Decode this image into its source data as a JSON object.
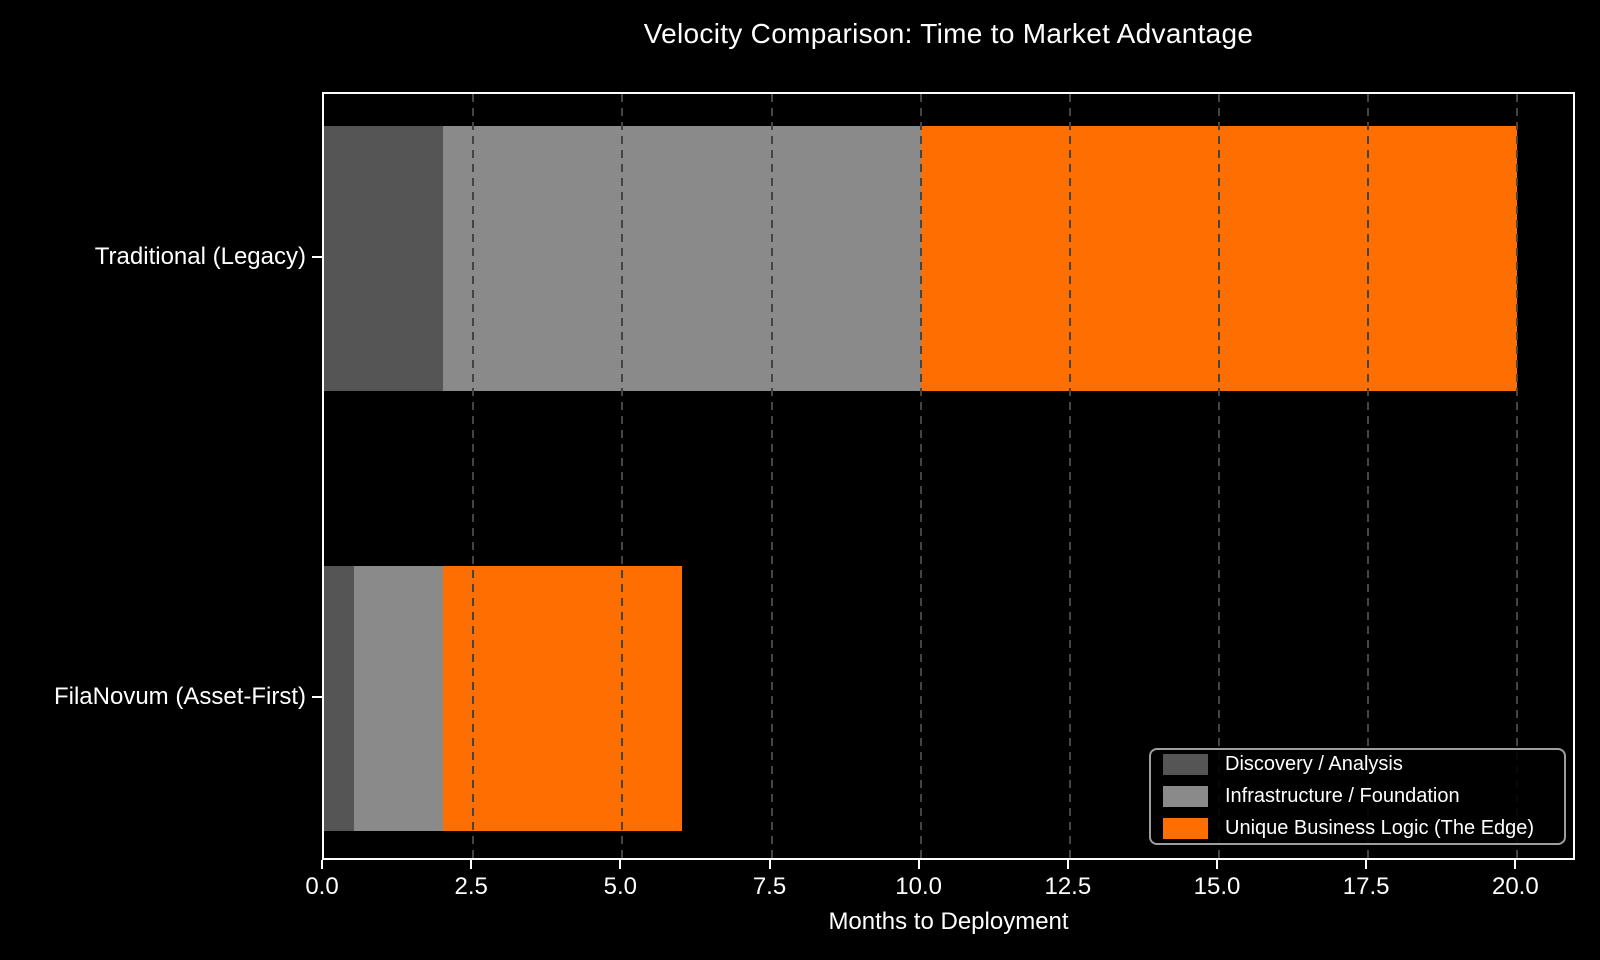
{
  "title": "Velocity Comparison: Time to Market Advantage",
  "colors": {
    "background": "#000000",
    "text": "#ffffff",
    "grid": "#444444",
    "spine": "#ffffff",
    "legend_border": "#9e9e9e"
  },
  "chart_data": {
    "type": "bar",
    "orientation": "horizontal",
    "stacked": true,
    "title": "Velocity Comparison: Time to Market Advantage",
    "xlabel": "Months to Deployment",
    "ylabel": "",
    "categories": [
      "Traditional (Legacy)",
      "FilaNovum (Asset-First)"
    ],
    "series": [
      {
        "name": "Discovery / Analysis",
        "color": "#555555",
        "values": [
          2,
          0.5
        ]
      },
      {
        "name": "Infrastructure / Foundation",
        "color": "#8a8a8a",
        "values": [
          8,
          1.5
        ]
      },
      {
        "name": "Unique Business Logic (The Edge)",
        "color": "#ff6e00",
        "values": [
          10,
          4
        ]
      }
    ],
    "totals": [
      20,
      6
    ],
    "xlim": [
      0,
      21
    ],
    "xticks": [
      0,
      2.5,
      5,
      7.5,
      10,
      12.5,
      15,
      17.5,
      20
    ],
    "xtick_labels": [
      "0.0",
      "2.5",
      "5.0",
      "7.5",
      "10.0",
      "12.5",
      "15.0",
      "17.5",
      "20.0"
    ],
    "grid": "vertical dashed, drawn above bars",
    "legend_position": "lower right"
  }
}
